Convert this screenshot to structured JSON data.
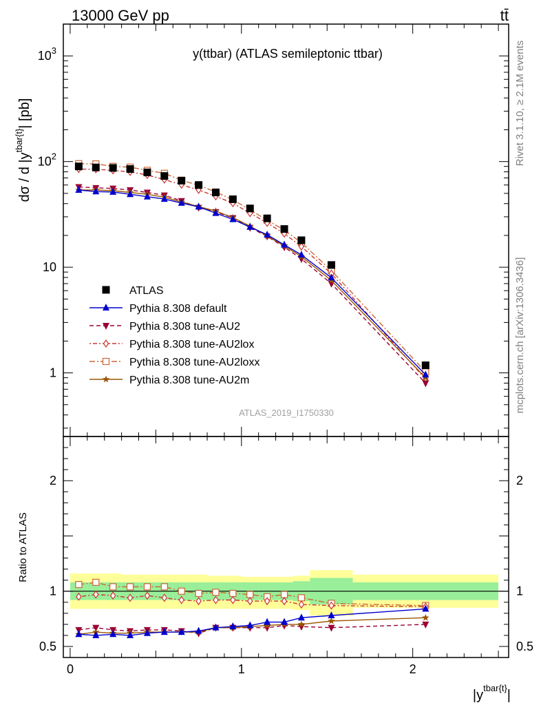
{
  "header": {
    "left": "13000 GeV pp",
    "right": "tt̄"
  },
  "side_labels": {
    "top": "Rivet 3.1.10, ≥ 2.1M events",
    "bottom": "mcplots.cern.ch [arXiv:1306.3436]"
  },
  "chart_data": {
    "type": "line",
    "title": "y(ttbar) (ATLAS semileptonic ttbar)",
    "watermark": "ATLAS_2019_I1750330",
    "ylabel_main": "dσ / d |y^{tbar{t}}| [pb]",
    "ylabel_ratio": "Ratio to ATLAS",
    "xlabel": "|y^{tbar{t}}|",
    "xlim": [
      -0.04,
      2.56
    ],
    "main_ylim": [
      0.25,
      2000
    ],
    "main_yscale": "log",
    "ratio_ylim": [
      0.4,
      2.4
    ],
    "x_ticks": [
      0,
      1,
      2
    ],
    "main_y_ticks": [
      "1",
      "10",
      "10^2",
      "10^3"
    ],
    "ratio_y_ticks": [
      "0.5",
      "1",
      "2"
    ],
    "legend_placement": "lower-left",
    "bins": {
      "lo": [
        0.0,
        0.1,
        0.2,
        0.3,
        0.4,
        0.5,
        0.6,
        0.7,
        0.8,
        0.9,
        1.0,
        1.1,
        1.2,
        1.3,
        1.4,
        1.65
      ],
      "hi": [
        0.1,
        0.2,
        0.3,
        0.4,
        0.5,
        0.6,
        0.7,
        0.8,
        0.9,
        1.0,
        1.1,
        1.2,
        1.3,
        1.4,
        1.65,
        2.5
      ]
    },
    "x": [
      0.05,
      0.15,
      0.25,
      0.35,
      0.45,
      0.55,
      0.65,
      0.75,
      0.85,
      0.95,
      1.05,
      1.15,
      1.25,
      1.35,
      1.525,
      2.075
    ],
    "data": {
      "name": "ATLAS",
      "values": [
        90,
        88,
        87,
        85,
        79,
        73,
        66,
        60,
        51,
        44,
        36,
        29,
        23,
        18,
        10.5,
        1.18
      ],
      "color": "#000000"
    },
    "bands": {
      "inner_color": "#99ee99",
      "outer_color": "#ffff99",
      "inner_lo": [
        0.92,
        0.92,
        0.92,
        0.92,
        0.92,
        0.92,
        0.92,
        0.92,
        0.92,
        0.92,
        0.92,
        0.92,
        0.92,
        0.91,
        0.88,
        0.92
      ],
      "inner_hi": [
        1.08,
        1.08,
        1.08,
        1.08,
        1.08,
        1.08,
        1.08,
        1.08,
        1.08,
        1.08,
        1.08,
        1.08,
        1.08,
        1.09,
        1.12,
        1.08
      ],
      "outer_lo": [
        0.84,
        0.84,
        0.84,
        0.84,
        0.84,
        0.84,
        0.84,
        0.84,
        0.84,
        0.84,
        0.84,
        0.84,
        0.84,
        0.83,
        0.78,
        0.85
      ],
      "outer_hi": [
        1.16,
        1.16,
        1.16,
        1.15,
        1.15,
        1.15,
        1.15,
        1.15,
        1.14,
        1.14,
        1.13,
        1.13,
        1.13,
        1.14,
        1.19,
        1.15
      ]
    },
    "series": [
      {
        "name": "Pythia 8.308 default",
        "color": "#0000cc",
        "dash": "",
        "marker": "triangle-up",
        "values": [
          53.8,
          52.0,
          51.5,
          49.0,
          46.5,
          44.2,
          40.5,
          37.3,
          32.5,
          28.4,
          24.0,
          20.3,
          16.3,
          13.1,
          7.95,
          0.96
        ],
        "ratio": [
          0.61,
          0.6,
          0.61,
          0.6,
          0.62,
          0.63,
          0.63,
          0.64,
          0.67,
          0.68,
          0.69,
          0.72,
          0.72,
          0.76,
          0.78,
          0.84
        ]
      },
      {
        "name": "Pythia 8.308 tune-AU2",
        "color": "#990033",
        "dash": "6,4",
        "marker": "triangle-down",
        "values": [
          57.5,
          56.4,
          55.7,
          53.8,
          51.0,
          48.0,
          42.5,
          36.7,
          33.4,
          29.3,
          23.7,
          19.6,
          15.5,
          12.0,
          7.0,
          0.8
        ],
        "ratio": [
          0.65,
          0.67,
          0.65,
          0.64,
          0.65,
          0.65,
          0.64,
          0.62,
          0.67,
          0.67,
          0.67,
          0.67,
          0.69,
          0.68,
          0.67,
          0.7
        ]
      },
      {
        "name": "Pythia 8.308 tune-AU2lox",
        "color": "#cc3333",
        "dash": "2,3,6,3",
        "marker": "diamond",
        "values": [
          85.0,
          84.4,
          82.5,
          79.8,
          74.6,
          67.5,
          60.4,
          53.9,
          46.9,
          40.4,
          32.5,
          26.3,
          20.8,
          15.7,
          8.7,
          0.87
        ],
        "ratio": [
          0.95,
          0.97,
          0.96,
          0.94,
          0.96,
          0.94,
          0.92,
          0.91,
          0.92,
          0.92,
          0.91,
          0.91,
          0.91,
          0.88,
          0.87,
          0.86
        ]
      },
      {
        "name": "Pythia 8.308 tune-AU2loxx",
        "color": "#cc6633",
        "dash": "8,3,2,3",
        "marker": "square-open",
        "values": [
          95.5,
          95.0,
          90.0,
          88.5,
          82.6,
          77.4,
          66.5,
          59.7,
          51.5,
          43.4,
          35.0,
          27.8,
          22.5,
          17.1,
          9.3,
          1.02
        ],
        "ratio": [
          1.06,
          1.08,
          1.04,
          1.04,
          1.04,
          1.04,
          1.0,
          0.98,
          0.99,
          0.98,
          0.97,
          0.95,
          0.97,
          0.94,
          0.89,
          0.87
        ]
      },
      {
        "name": "Pythia 8.308 tune-AU2m",
        "color": "#995500",
        "dash": "",
        "marker": "star",
        "values": [
          53.8,
          53.8,
          53.0,
          51.0,
          49.0,
          46.0,
          41.5,
          37.5,
          34.0,
          29.5,
          24.5,
          19.8,
          15.9,
          12.6,
          7.5,
          0.9
        ],
        "ratio": [
          0.61,
          0.63,
          0.62,
          0.62,
          0.63,
          0.63,
          0.63,
          0.63,
          0.67,
          0.67,
          0.68,
          0.69,
          0.7,
          0.7,
          0.73,
          0.76
        ]
      }
    ]
  }
}
